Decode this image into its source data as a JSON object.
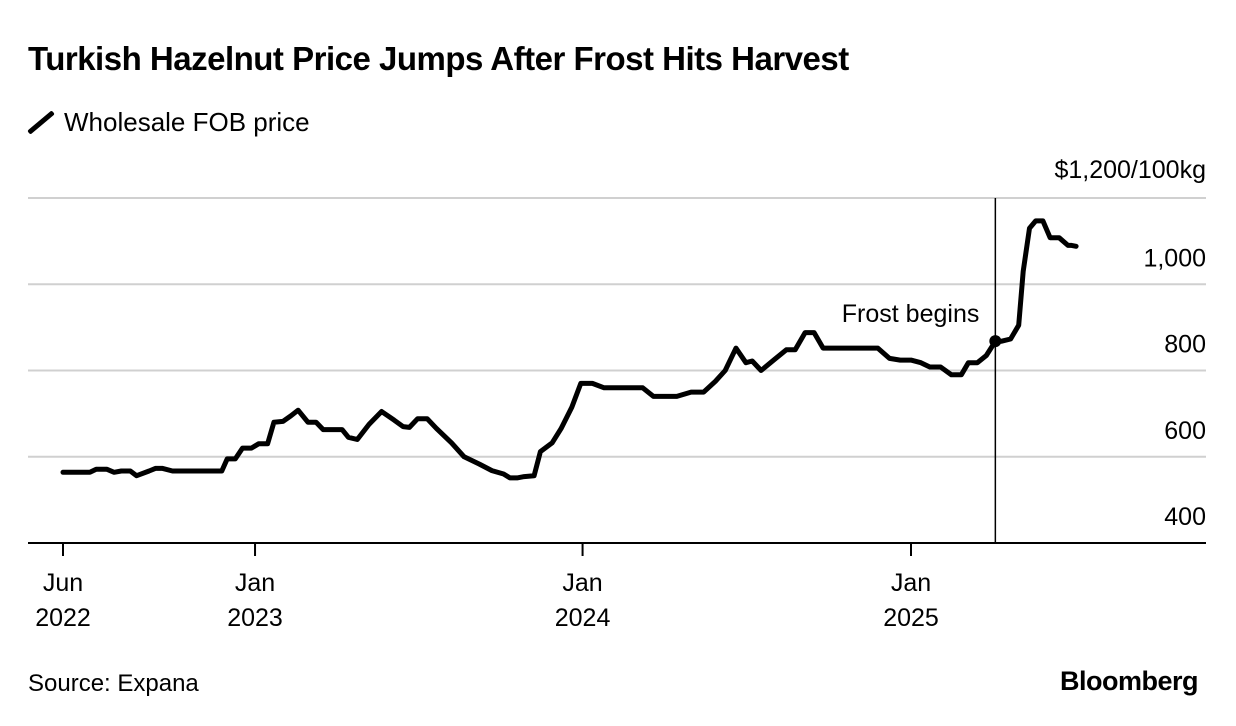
{
  "chart_data": {
    "type": "line",
    "title": "Turkish Hazelnut Price Jumps After Frost Hits Harvest",
    "source": "Source: Expana",
    "brand": "Bloomberg",
    "ylim": [
      400,
      1200
    ],
    "y_ticks": [
      400,
      600,
      800,
      1000,
      1200
    ],
    "y_tick_labels": [
      "400",
      "600",
      "800",
      "1,000",
      "$1,200/100kg"
    ],
    "x_ticks": [
      {
        "x": "2022-06-01",
        "label": [
          "Jun",
          "2022"
        ]
      },
      {
        "x": "2023-01-01",
        "label": [
          "Jan",
          "2023"
        ]
      },
      {
        "x": "2024-01-01",
        "label": [
          "Jan",
          "2024"
        ]
      },
      {
        "x": "2025-01-01",
        "label": [
          "Jan",
          "2025"
        ]
      }
    ],
    "xlim": [
      "2022-05-15",
      "2025-12-31"
    ],
    "grid": true,
    "legend_position": "top-left",
    "annotation": {
      "label": "Frost begins",
      "x": "2025-04-05",
      "y": 868
    },
    "series": [
      {
        "name": "Wholesale FOB price",
        "color": "#000000",
        "points": [
          [
            "2022-06-01",
            564
          ],
          [
            "2022-06-15",
            564
          ],
          [
            "2022-07-01",
            564
          ],
          [
            "2022-07-08",
            571
          ],
          [
            "2022-07-20",
            571
          ],
          [
            "2022-07-28",
            564
          ],
          [
            "2022-08-05",
            567
          ],
          [
            "2022-08-15",
            567
          ],
          [
            "2022-08-22",
            556
          ],
          [
            "2022-09-05",
            567
          ],
          [
            "2022-09-12",
            573
          ],
          [
            "2022-09-20",
            573
          ],
          [
            "2022-10-01",
            567
          ],
          [
            "2022-10-15",
            567
          ],
          [
            "2022-11-01",
            567
          ],
          [
            "2022-11-15",
            567
          ],
          [
            "2022-11-25",
            567
          ],
          [
            "2022-12-01",
            595
          ],
          [
            "2022-12-10",
            595
          ],
          [
            "2022-12-18",
            620
          ],
          [
            "2022-12-28",
            620
          ],
          [
            "2023-01-05",
            630
          ],
          [
            "2023-01-15",
            630
          ],
          [
            "2023-01-22",
            680
          ],
          [
            "2023-02-01",
            682
          ],
          [
            "2023-02-10",
            695
          ],
          [
            "2023-02-18",
            708
          ],
          [
            "2023-03-01",
            680
          ],
          [
            "2023-03-10",
            680
          ],
          [
            "2023-03-18",
            663
          ],
          [
            "2023-03-28",
            663
          ],
          [
            "2023-04-08",
            663
          ],
          [
            "2023-04-15",
            645
          ],
          [
            "2023-04-25",
            640
          ],
          [
            "2023-05-08",
            675
          ],
          [
            "2023-05-22",
            705
          ],
          [
            "2023-06-05",
            685
          ],
          [
            "2023-06-15",
            670
          ],
          [
            "2023-06-22",
            668
          ],
          [
            "2023-07-01",
            688
          ],
          [
            "2023-07-12",
            688
          ],
          [
            "2023-07-22",
            666
          ],
          [
            "2023-08-08",
            632
          ],
          [
            "2023-08-22",
            600
          ],
          [
            "2023-09-08",
            583
          ],
          [
            "2023-09-22",
            568
          ],
          [
            "2023-10-05",
            560
          ],
          [
            "2023-10-12",
            551
          ],
          [
            "2023-10-20",
            551
          ],
          [
            "2023-10-28",
            554
          ],
          [
            "2023-11-08",
            556
          ],
          [
            "2023-11-15",
            612
          ],
          [
            "2023-11-28",
            632
          ],
          [
            "2023-12-08",
            665
          ],
          [
            "2023-12-20",
            715
          ],
          [
            "2023-12-30",
            770
          ],
          [
            "2024-01-12",
            770
          ],
          [
            "2024-01-25",
            760
          ],
          [
            "2024-02-08",
            760
          ],
          [
            "2024-02-22",
            760
          ],
          [
            "2024-03-08",
            760
          ],
          [
            "2024-03-20",
            740
          ],
          [
            "2024-04-01",
            740
          ],
          [
            "2024-04-15",
            740
          ],
          [
            "2024-05-01",
            750
          ],
          [
            "2024-05-15",
            750
          ],
          [
            "2024-05-28",
            775
          ],
          [
            "2024-06-08",
            800
          ],
          [
            "2024-06-20",
            852
          ],
          [
            "2024-07-01",
            818
          ],
          [
            "2024-07-08",
            822
          ],
          [
            "2024-07-18",
            800
          ],
          [
            "2024-08-01",
            824
          ],
          [
            "2024-08-15",
            848
          ],
          [
            "2024-08-25",
            848
          ],
          [
            "2024-09-05",
            888
          ],
          [
            "2024-09-15",
            888
          ],
          [
            "2024-09-25",
            852
          ],
          [
            "2024-10-10",
            852
          ],
          [
            "2024-10-30",
            852
          ],
          [
            "2024-11-15",
            852
          ],
          [
            "2024-11-25",
            852
          ],
          [
            "2024-12-08",
            828
          ],
          [
            "2024-12-20",
            824
          ],
          [
            "2025-01-01",
            824
          ],
          [
            "2025-01-12",
            818
          ],
          [
            "2025-01-22",
            808
          ],
          [
            "2025-01-30",
            808
          ],
          [
            "2025-02-03",
            808
          ],
          [
            "2025-02-15",
            790
          ],
          [
            "2025-02-26",
            790
          ],
          [
            "2025-03-06",
            818
          ],
          [
            "2025-03-16",
            818
          ],
          [
            "2025-03-26",
            835
          ],
          [
            "2025-04-05",
            868
          ],
          [
            "2025-04-12",
            868
          ],
          [
            "2025-04-22",
            873
          ],
          [
            "2025-05-01",
            905
          ],
          [
            "2025-05-06",
            1030
          ],
          [
            "2025-05-13",
            1130
          ],
          [
            "2025-05-20",
            1147
          ],
          [
            "2025-05-28",
            1147
          ],
          [
            "2025-06-05",
            1108
          ],
          [
            "2025-06-15",
            1108
          ],
          [
            "2025-06-25",
            1090
          ],
          [
            "2025-06-29",
            1090
          ],
          [
            "2025-07-04",
            1088
          ]
        ]
      }
    ]
  }
}
